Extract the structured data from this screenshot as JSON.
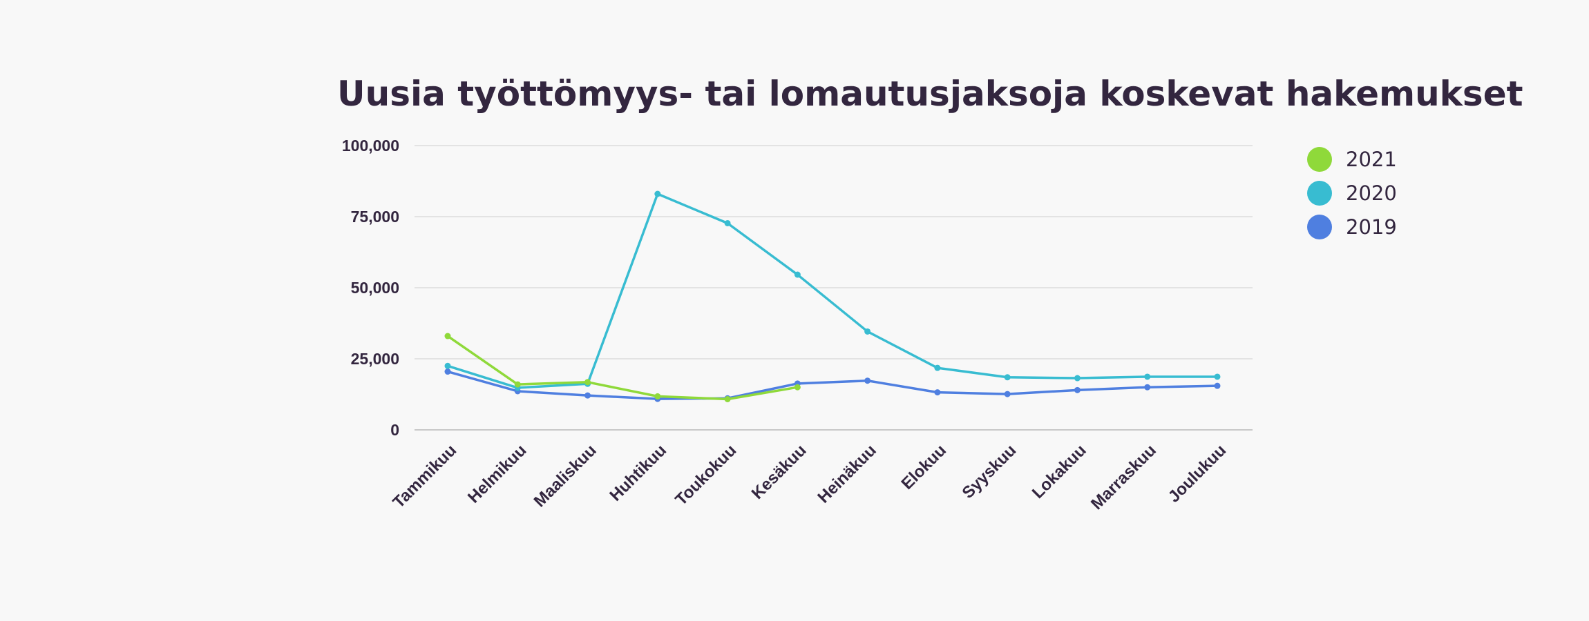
{
  "chart_data": {
    "type": "line",
    "title": "Uusia työttömyys- tai lomautusjaksoja koskevat hakemukset",
    "xlabel": "",
    "ylabel": "",
    "categories": [
      "Tammikuu",
      "Helmikuu",
      "Maaliskuu",
      "Huhtikuu",
      "Toukokuu",
      "Kesäkuu",
      "Heinäkuu",
      "Elokuu",
      "Syyskuu",
      "Lokakuu",
      "Marraskuu",
      "Joulukuu"
    ],
    "y_ticks": [
      "100,000",
      "75,000",
      "50,000",
      "25,000",
      "0"
    ],
    "ylim": [
      0,
      100000
    ],
    "grid": true,
    "legend_position": "top-right",
    "series": [
      {
        "name": "2021",
        "color": "#8fd93a",
        "values": [
          33000,
          16000,
          16800,
          11800,
          10800,
          15000,
          null,
          null,
          null,
          null,
          null,
          null
        ]
      },
      {
        "name": "2020",
        "color": "#38bcd1",
        "values": [
          22500,
          14800,
          16200,
          83000,
          72700,
          54600,
          34600,
          21800,
          18500,
          18200,
          18700,
          18700
        ]
      },
      {
        "name": "2019",
        "color": "#4f7fe0",
        "values": [
          20500,
          13600,
          12100,
          10900,
          11100,
          16300,
          17300,
          13200,
          12600,
          14000,
          15000,
          15500
        ]
      }
    ]
  }
}
